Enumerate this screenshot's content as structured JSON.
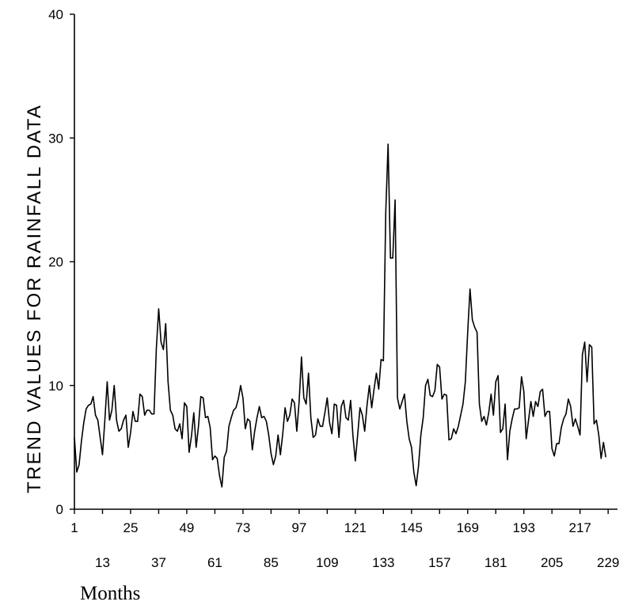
{
  "chart_data": {
    "type": "line",
    "title": "",
    "xlabel": "Months",
    "ylabel": "TREND VALUES FOR RAINFALL DATA",
    "xlim": [
      1,
      233
    ],
    "ylim": [
      0,
      40
    ],
    "y_ticks": [
      0,
      10,
      20,
      30,
      40
    ],
    "x_ticks_upper": [
      1,
      25,
      49,
      73,
      97,
      121,
      145,
      169,
      193,
      217
    ],
    "x_ticks_lower": [
      13,
      37,
      61,
      85,
      109,
      133,
      157,
      181,
      205,
      229
    ],
    "grid": false,
    "line_color": "#000000",
    "series": [
      {
        "values": [
          5.8,
          3.0,
          3.6,
          5.5,
          7.0,
          8.1,
          8.4,
          8.5,
          9.1,
          7.6,
          7.2,
          5.8,
          4.4,
          7.2,
          10.3,
          7.2,
          8.0,
          10.0,
          7.2,
          6.3,
          6.5,
          7.2,
          7.6,
          5.0,
          6.2,
          7.9,
          7.1,
          7.1,
          9.3,
          9.1,
          7.6,
          8.0,
          8.0,
          7.7,
          7.7,
          13.0,
          16.2,
          13.5,
          12.9,
          15.0,
          10.3,
          8.0,
          7.6,
          6.5,
          6.3,
          6.9,
          5.7,
          8.6,
          8.3,
          4.6,
          5.9,
          7.8,
          5.0,
          6.7,
          9.1,
          9.0,
          7.4,
          7.5,
          6.6,
          4.0,
          4.3,
          4.1,
          2.7,
          1.8,
          4.2,
          4.7,
          6.7,
          7.4,
          8.0,
          8.2,
          8.9,
          10.0,
          9.0,
          6.5,
          7.3,
          7.1,
          4.8,
          6.3,
          7.4,
          8.3,
          7.4,
          7.5,
          7.1,
          6.0,
          4.5,
          3.6,
          4.3,
          6.0,
          4.4,
          6.1,
          8.2,
          7.1,
          7.6,
          8.9,
          8.6,
          6.3,
          8.7,
          12.3,
          9.0,
          8.5,
          11.0,
          7.4,
          5.8,
          6.0,
          7.3,
          6.7,
          6.7,
          7.8,
          9.0,
          7.0,
          6.1,
          8.5,
          8.4,
          5.8,
          8.3,
          8.8,
          7.4,
          7.2,
          8.8,
          5.9,
          3.9,
          6.0,
          8.2,
          7.6,
          6.3,
          8.4,
          10.0,
          8.2,
          9.7,
          11.0,
          9.7,
          12.1,
          12.0,
          24.0,
          29.5,
          20.3,
          20.3,
          25.0,
          9.0,
          8.1,
          8.7,
          9.3,
          7.1,
          5.7,
          5.0,
          3.0,
          1.9,
          3.5,
          6.0,
          7.4,
          10.0,
          10.5,
          9.2,
          9.1,
          9.6,
          11.7,
          11.5,
          8.9,
          9.3,
          9.2,
          5.6,
          5.7,
          6.5,
          6.1,
          6.7,
          7.6,
          8.5,
          10.3,
          14.3,
          17.8,
          15.3,
          14.7,
          14.3,
          8.5,
          7.1,
          7.5,
          6.8,
          7.8,
          9.3,
          7.6,
          10.3,
          10.8,
          6.2,
          6.5,
          8.5,
          4.0,
          6.3,
          7.3,
          8.1,
          8.1,
          8.2,
          10.7,
          9.5,
          5.7,
          7.2,
          8.7,
          7.5,
          8.7,
          8.3,
          9.5,
          9.7,
          7.5,
          7.9,
          7.9,
          4.9,
          4.3,
          5.3,
          5.3,
          6.6,
          7.3,
          7.7,
          8.9,
          8.3,
          6.7,
          7.3,
          6.7,
          6.0,
          12.5,
          13.5,
          10.3,
          13.3,
          13.1,
          6.9,
          7.2,
          6.0,
          4.1,
          5.4,
          4.2
        ]
      }
    ]
  }
}
